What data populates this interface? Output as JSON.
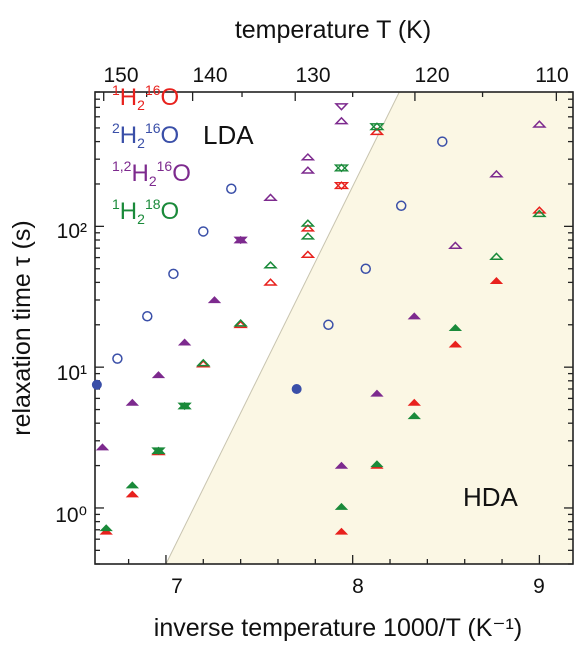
{
  "chart_data": {
    "type": "scatter",
    "xlabel": "inverse temperature 1000/T (K⁻¹)",
    "x2label": "temperature T (K)",
    "ylabel": "relaxation time τ (s)",
    "xlim": [
      6.62,
      9.18
    ],
    "ylim": [
      0.4,
      900
    ],
    "yscale": "log",
    "x_ticks": [
      "7",
      "8",
      "9"
    ],
    "x2_ticks": [
      "150",
      "140",
      "130",
      "120",
      "110"
    ],
    "y_ticks": [
      "10⁰",
      "10¹",
      "10²"
    ],
    "region_labels": {
      "left": "LDA",
      "right": "HDA"
    },
    "boundary_line": [
      [
        7.0,
        0.4
      ],
      [
        8.25,
        900
      ]
    ],
    "colors": {
      "red": "#e8211d",
      "blue": "#3a4fa8",
      "purple": "#7d2a8e",
      "green": "#1a8a3a",
      "hda_fill": "#fbf7e4"
    },
    "legend": [
      {
        "pre": "1",
        "mid": "H",
        "sub": "2",
        "sup2": "16",
        "post": "O",
        "color": "red"
      },
      {
        "pre": "2",
        "mid": "H",
        "sub": "2",
        "sup2": "16",
        "post": "O",
        "color": "blue"
      },
      {
        "pre": "1,2",
        "mid": "H",
        "sub": "2",
        "sup2": "16",
        "post": "O",
        "color": "purple"
      },
      {
        "pre": "1",
        "mid": "H",
        "sub": "2",
        "sup2": "18",
        "post": "O",
        "color": "green"
      }
    ],
    "series": [
      {
        "name": "¹H₂¹⁶O",
        "color": "red",
        "points": [
          {
            "x": 7.56,
            "y": 40,
            "m": "tri-open"
          },
          {
            "x": 7.76,
            "y": 63,
            "m": "tri-open"
          },
          {
            "x": 7.76,
            "y": 97,
            "m": "tri-open"
          },
          {
            "x": 7.94,
            "y": 195,
            "m": "star-open"
          },
          {
            "x": 8.13,
            "y": 470,
            "m": "tri-open"
          },
          {
            "x": 9.0,
            "y": 130,
            "m": "tri-open"
          },
          {
            "x": 7.2,
            "y": 10.5,
            "m": "tri-open"
          },
          {
            "x": 7.4,
            "y": 20,
            "m": "tri-open"
          },
          {
            "x": 6.96,
            "y": 2.5,
            "m": "tri-open"
          },
          {
            "x": 6.68,
            "y": 0.68,
            "m": "tri-fill"
          },
          {
            "x": 6.82,
            "y": 1.25,
            "m": "tri-fill"
          },
          {
            "x": 7.94,
            "y": 0.68,
            "m": "tri-fill"
          },
          {
            "x": 8.13,
            "y": 2.0,
            "m": "tri-fill"
          },
          {
            "x": 8.33,
            "y": 5.6,
            "m": "tri-fill"
          },
          {
            "x": 8.55,
            "y": 14.5,
            "m": "tri-fill"
          },
          {
            "x": 8.77,
            "y": 41,
            "m": "tri-fill"
          }
        ]
      },
      {
        "name": "²H₂¹⁶O",
        "color": "blue",
        "points": [
          {
            "x": 6.74,
            "y": 11.5,
            "m": "circ-open"
          },
          {
            "x": 6.9,
            "y": 23,
            "m": "circ-open"
          },
          {
            "x": 7.04,
            "y": 46,
            "m": "circ-open"
          },
          {
            "x": 7.2,
            "y": 92,
            "m": "circ-open"
          },
          {
            "x": 7.35,
            "y": 185,
            "m": "circ-open"
          },
          {
            "x": 7.87,
            "y": 20,
            "m": "circ-open"
          },
          {
            "x": 8.07,
            "y": 50,
            "m": "circ-open"
          },
          {
            "x": 8.26,
            "y": 140,
            "m": "circ-open"
          },
          {
            "x": 8.48,
            "y": 400,
            "m": "circ-open"
          },
          {
            "x": 6.63,
            "y": 7.5,
            "m": "circ-fill"
          },
          {
            "x": 7.7,
            "y": 7.0,
            "m": "circ-fill"
          }
        ]
      },
      {
        "name": "¹˒²H₂¹⁶O",
        "color": "purple",
        "points": [
          {
            "x": 7.56,
            "y": 160,
            "m": "tri-open"
          },
          {
            "x": 7.76,
            "y": 250,
            "m": "tri-open"
          },
          {
            "x": 7.76,
            "y": 310,
            "m": "tri-open"
          },
          {
            "x": 7.94,
            "y": 560,
            "m": "tri-open"
          },
          {
            "x": 7.94,
            "y": 710,
            "m": "tri-down-open"
          },
          {
            "x": 8.55,
            "y": 73,
            "m": "tri-open"
          },
          {
            "x": 8.77,
            "y": 235,
            "m": "tri-open"
          },
          {
            "x": 9.0,
            "y": 530,
            "m": "tri-open"
          },
          {
            "x": 7.4,
            "y": 80,
            "m": "star-fill"
          },
          {
            "x": 6.66,
            "y": 2.7,
            "m": "tri-fill"
          },
          {
            "x": 6.82,
            "y": 5.6,
            "m": "tri-fill"
          },
          {
            "x": 6.96,
            "y": 8.8,
            "m": "tri-fill"
          },
          {
            "x": 7.1,
            "y": 15,
            "m": "tri-fill"
          },
          {
            "x": 7.26,
            "y": 30,
            "m": "tri-fill"
          },
          {
            "x": 7.94,
            "y": 2.0,
            "m": "tri-fill"
          },
          {
            "x": 8.13,
            "y": 6.5,
            "m": "tri-fill"
          },
          {
            "x": 8.33,
            "y": 23,
            "m": "tri-fill"
          }
        ]
      },
      {
        "name": "¹H₂¹⁸O",
        "color": "green",
        "points": [
          {
            "x": 7.56,
            "y": 53,
            "m": "tri-open"
          },
          {
            "x": 7.76,
            "y": 85,
            "m": "tri-open"
          },
          {
            "x": 7.76,
            "y": 105,
            "m": "tri-open"
          },
          {
            "x": 7.94,
            "y": 260,
            "m": "star-open"
          },
          {
            "x": 8.13,
            "y": 510,
            "m": "star-open"
          },
          {
            "x": 8.77,
            "y": 61,
            "m": "tri-open"
          },
          {
            "x": 9.0,
            "y": 123,
            "m": "tri-open"
          },
          {
            "x": 7.2,
            "y": 10.7,
            "m": "tri-open"
          },
          {
            "x": 7.4,
            "y": 20.5,
            "m": "tri-open"
          },
          {
            "x": 6.96,
            "y": 2.55,
            "m": "star-fill"
          },
          {
            "x": 7.1,
            "y": 5.3,
            "m": "star-fill"
          },
          {
            "x": 6.68,
            "y": 0.72,
            "m": "tri-fill"
          },
          {
            "x": 6.82,
            "y": 1.45,
            "m": "tri-fill"
          },
          {
            "x": 7.94,
            "y": 1.02,
            "m": "tri-fill"
          },
          {
            "x": 8.13,
            "y": 2.05,
            "m": "tri-fill"
          },
          {
            "x": 8.33,
            "y": 4.5,
            "m": "tri-fill"
          },
          {
            "x": 8.55,
            "y": 19,
            "m": "tri-fill"
          }
        ]
      }
    ]
  }
}
